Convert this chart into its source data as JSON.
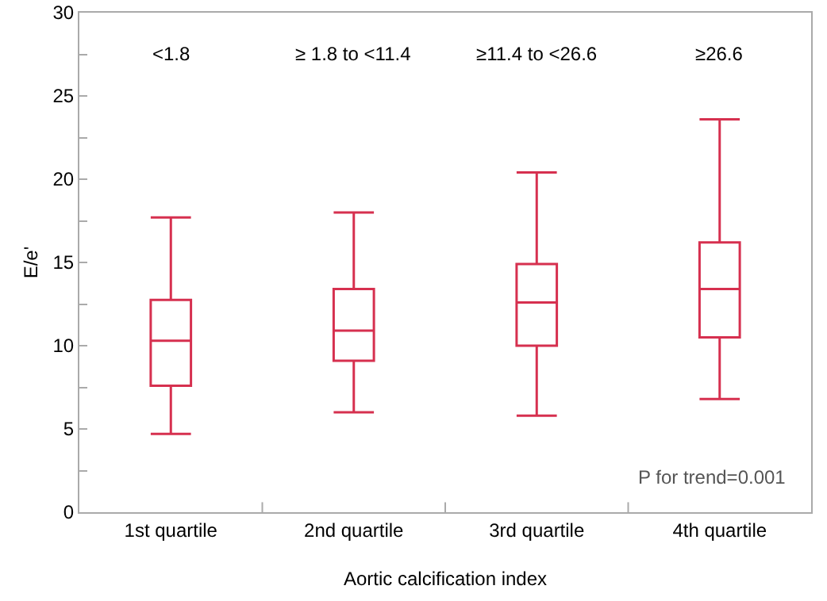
{
  "chart_data": {
    "type": "box",
    "xlabel": "Aortic calcification index",
    "ylabel": "E/e'",
    "categories": [
      "1st quartile",
      "2nd quartile",
      "3rd quartile",
      "4th quartile"
    ],
    "boxes": [
      {
        "low": 4.7,
        "q1": 7.6,
        "median": 10.3,
        "q3": 12.75,
        "high": 17.7
      },
      {
        "low": 6.0,
        "q1": 9.1,
        "median": 10.9,
        "q3": 13.4,
        "high": 18.0
      },
      {
        "low": 5.8,
        "q1": 10.0,
        "median": 12.6,
        "q3": 14.9,
        "high": 20.4
      },
      {
        "low": 6.8,
        "q1": 10.5,
        "median": 13.4,
        "q3": 16.2,
        "high": 23.6
      }
    ],
    "color": "#d6304f",
    "ylim": [
      0,
      30
    ],
    "yticks": [
      0,
      {
        "value": 2.5,
        "label": null
      },
      5,
      {
        "value": 7.5,
        "label": null
      },
      10,
      {
        "value": 12.5,
        "label": null
      },
      15,
      {
        "value": 17.5,
        "label": null
      },
      20,
      {
        "value": 22.5,
        "label": null
      },
      25,
      {
        "value": 27.5,
        "label": null
      },
      30
    ],
    "annotations": [
      "<1.8",
      "≥ 1.8 to <11.4",
      "≥11.4 to <26.6",
      "≥26.6",
      "P for trend=0.001"
    ],
    "grid": false
  }
}
